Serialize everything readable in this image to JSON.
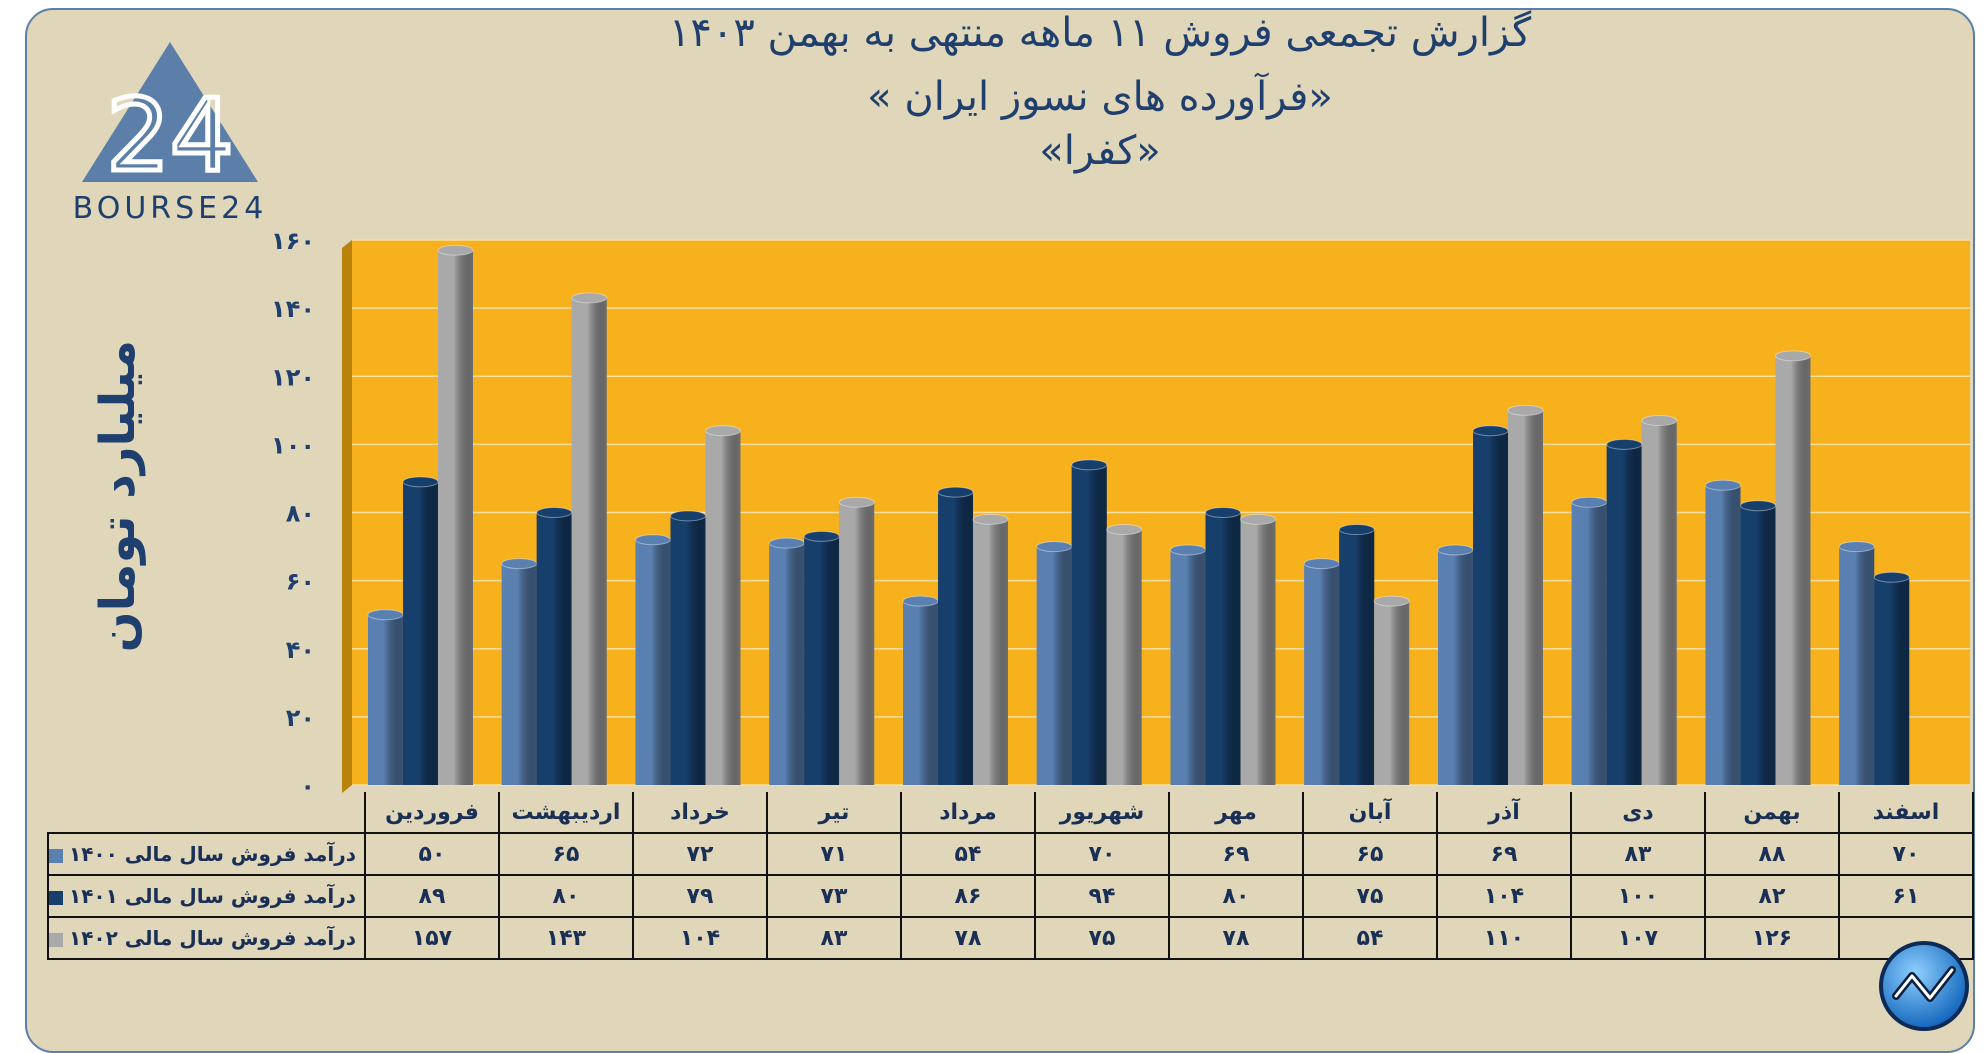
{
  "title": {
    "line1": "گزارش تجمعی فروش ۱۱ ماهه منتهی به بهمن ۱۴۰۳",
    "line2": "«فرآورده های نسوز ایران »",
    "line3": "«کفرا»"
  },
  "logo": {
    "text": "BOURSE24",
    "mark": "24"
  },
  "icons": {
    "logo": "bourse24-triangle-logo",
    "badge": "chart-trend-circle-icon"
  },
  "colors": {
    "background": "#e0d6b9",
    "plot": "#f6b11c",
    "s1400": "#5a80b2",
    "s1401": "#173f6c",
    "s1402": "#a9a9a9",
    "title": "#1f3f6e"
  },
  "chart_data": {
    "type": "bar",
    "title": "گزارش تجمعی فروش ۱۱ ماهه منتهی به بهمن ۱۴۰۳",
    "ylabel": "میلیارد تومان",
    "ylim": [
      0,
      160
    ],
    "yticks": [
      0,
      20,
      40,
      60,
      80,
      100,
      120,
      140,
      160
    ],
    "ytick_labels": [
      "۰",
      "۲۰",
      "۴۰",
      "۶۰",
      "۸۰",
      "۱۰۰",
      "۱۲۰",
      "۱۴۰",
      "۱۶۰"
    ],
    "grid": true,
    "categories": [
      "فروردین",
      "اردیبهشت",
      "خرداد",
      "تیر",
      "مرداد",
      "شهریور",
      "مهر",
      "آبان",
      "آذر",
      "دی",
      "بهمن",
      "اسفند"
    ],
    "series": [
      {
        "name": "درآمد فروش سال مالی ۱۴۰۰",
        "color": "#5a80b2",
        "values": [
          50,
          65,
          72,
          71,
          54,
          70,
          69,
          65,
          69,
          83,
          88,
          70
        ],
        "labels": [
          "۵۰",
          "۶۵",
          "۷۲",
          "۷۱",
          "۵۴",
          "۷۰",
          "۶۹",
          "۶۵",
          "۶۹",
          "۸۳",
          "۸۸",
          "۷۰"
        ]
      },
      {
        "name": "درآمد فروش سال مالی ۱۴۰۱",
        "color": "#173f6c",
        "values": [
          89,
          80,
          79,
          73,
          86,
          94,
          80,
          75,
          104,
          100,
          82,
          61
        ],
        "labels": [
          "۸۹",
          "۸۰",
          "۷۹",
          "۷۳",
          "۸۶",
          "۹۴",
          "۸۰",
          "۷۵",
          "۱۰۴",
          "۱۰۰",
          "۸۲",
          "۶۱"
        ]
      },
      {
        "name": "درآمد فروش سال مالی ۱۴۰۲",
        "color": "#a9a9a9",
        "values": [
          157,
          143,
          104,
          83,
          78,
          75,
          78,
          54,
          110,
          107,
          126,
          null
        ],
        "labels": [
          "۱۵۷",
          "۱۴۳",
          "۱۰۴",
          "۸۳",
          "۷۸",
          "۷۵",
          "۷۸",
          "۵۴",
          "۱۱۰",
          "۱۰۷",
          "۱۲۶",
          ""
        ]
      }
    ]
  }
}
